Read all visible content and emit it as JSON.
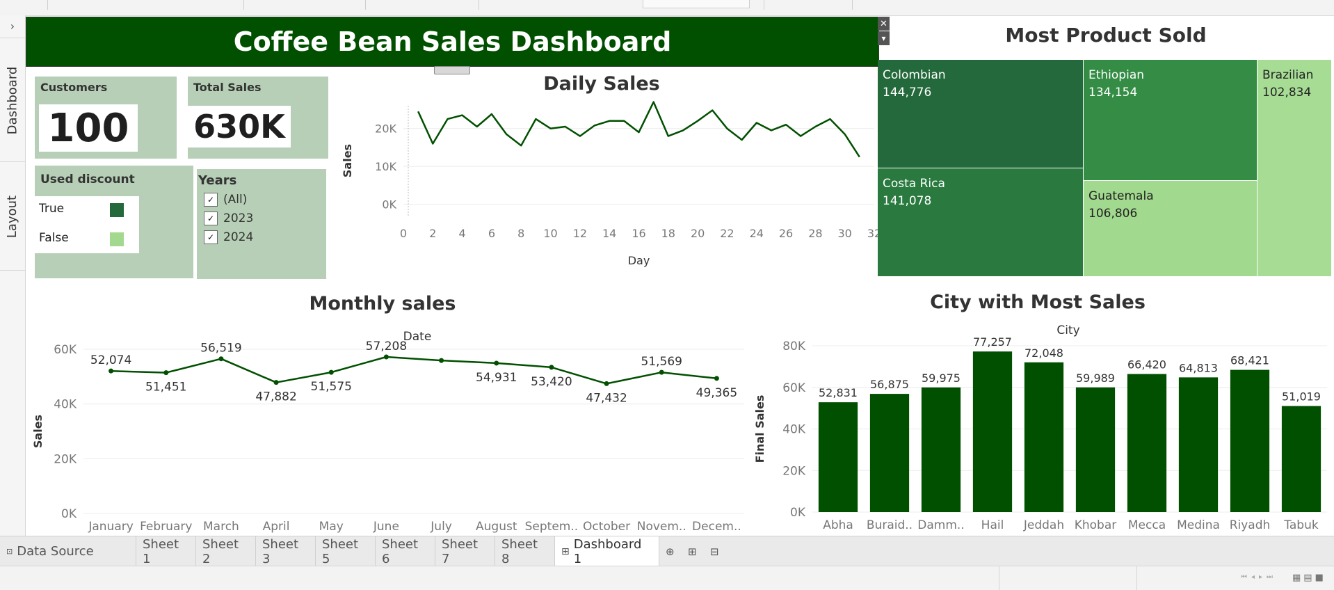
{
  "app": {
    "tabs": [
      {
        "label": "Data Source",
        "icon": "data-source-icon"
      },
      {
        "label": "Sheet 1"
      },
      {
        "label": "Sheet 2"
      },
      {
        "label": "Sheet 3"
      },
      {
        "label": "Sheet 5"
      },
      {
        "label": "Sheet 6"
      },
      {
        "label": "Sheet 7"
      },
      {
        "label": "Sheet 8"
      },
      {
        "label": "Dashboard 1",
        "icon": "dashboard-icon",
        "active": true
      }
    ],
    "left_rail": {
      "dashboard": "Dashboard",
      "layout": "Layout",
      "expand_glyph": "›"
    }
  },
  "dashboard": {
    "title": "Coffee Bean Sales Dashboard",
    "close_glyph": "✕",
    "menu_glyph": "▾",
    "kpis": {
      "customers": {
        "label": "Customers",
        "value": "100"
      },
      "total_sales": {
        "label": "Total Sales",
        "value": "630K"
      }
    },
    "discount_legend": {
      "title": "Used discount",
      "items": [
        {
          "label": "True",
          "color": "#24693b"
        },
        {
          "label": "False",
          "color": "#a3d98f"
        }
      ]
    },
    "years_filter": {
      "title": "Years",
      "options": [
        {
          "label": "(All)",
          "checked": true
        },
        {
          "label": "2023",
          "checked": true
        },
        {
          "label": "2024",
          "checked": true
        }
      ]
    }
  },
  "chart_data": [
    {
      "type": "line",
      "title": "Daily Sales",
      "xlabel": "Day",
      "ylabel": "Sales",
      "x": [
        1,
        2,
        3,
        4,
        5,
        6,
        7,
        8,
        9,
        10,
        11,
        12,
        13,
        14,
        15,
        16,
        17,
        18,
        19,
        20,
        21,
        22,
        23,
        24,
        25,
        26,
        27,
        28,
        29,
        30,
        31
      ],
      "values": [
        24500,
        16000,
        22500,
        23500,
        20500,
        23800,
        18500,
        15500,
        22500,
        20000,
        20500,
        18000,
        20800,
        22000,
        22000,
        19000,
        27000,
        18000,
        19500,
        22000,
        24800,
        20000,
        17000,
        21500,
        19500,
        21000,
        18000,
        20500,
        22500,
        18500,
        12500
      ],
      "xlim": [
        0,
        32
      ],
      "ylim": [
        -3000,
        26000
      ],
      "xticks": [
        "0",
        "2",
        "4",
        "6",
        "8",
        "10",
        "12",
        "14",
        "16",
        "18",
        "20",
        "22",
        "24",
        "26",
        "28",
        "30",
        "32"
      ],
      "yticks": [
        "0K",
        "10K",
        "20K"
      ],
      "color": "#005000"
    },
    {
      "type": "treemap",
      "title": "Most Product Sold",
      "items": [
        {
          "name": "Colombian",
          "value": "144,776",
          "color": "#24693b"
        },
        {
          "name": "Costa Rica",
          "value": "141,078",
          "color": "#2a7a40"
        },
        {
          "name": "Ethiopian",
          "value": "134,154",
          "color": "#348c45"
        },
        {
          "name": "Guatemala",
          "value": "106,806",
          "color": "#a1d98e"
        },
        {
          "name": "Brazilian",
          "value": "102,834",
          "color": "#a7dc95"
        }
      ]
    },
    {
      "type": "line",
      "title": "Monthly sales",
      "top_label": "Date",
      "ylabel": "Sales",
      "categories": [
        "January",
        "February",
        "March",
        "April",
        "May",
        "June",
        "July",
        "August",
        "Septem..",
        "October",
        "Novem..",
        "Decem.."
      ],
      "values": [
        52074,
        51451,
        56519,
        47882,
        51575,
        57208,
        55900,
        54931,
        53420,
        47432,
        51569,
        49365
      ],
      "data_labels": [
        "52,074",
        "51,451",
        "56,519",
        "47,882",
        "51,575",
        "57,208",
        "",
        "54,931",
        "53,420",
        "47,432",
        "51,569",
        "49,365"
      ],
      "ylim": [
        0,
        60000
      ],
      "yticks": [
        "0K",
        "20K",
        "40K",
        "60K"
      ],
      "color": "#005000"
    },
    {
      "type": "bar",
      "title": "City with Most Sales",
      "top_label": "City",
      "ylabel": "Final Sales",
      "categories": [
        "Abha",
        "Buraid..",
        "Damm..",
        "Hail",
        "Jeddah",
        "Khobar",
        "Mecca",
        "Medina",
        "Riyadh",
        "Tabuk"
      ],
      "values": [
        52831,
        56875,
        59975,
        77257,
        72048,
        59989,
        66420,
        64813,
        68421,
        51019
      ],
      "data_labels": [
        "52,831",
        "56,875",
        "59,975",
        "77,257",
        "72,048",
        "59,989",
        "66,420",
        "64,813",
        "68,421",
        "51,019"
      ],
      "ylim": [
        0,
        80000
      ],
      "yticks": [
        "0K",
        "20K",
        "40K",
        "60K",
        "80K"
      ],
      "color": "#005000"
    }
  ]
}
